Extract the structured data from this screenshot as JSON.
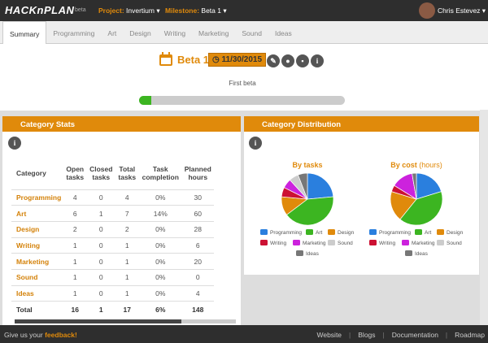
{
  "navbar": {
    "logo": "HACKnPLAN",
    "beta": "beta",
    "project_label": "Project:",
    "project": "Invertium",
    "milestone_label": "Milestone:",
    "milestone": "Beta 1",
    "user": "Chris Estevez"
  },
  "tabs": [
    "Summary",
    "Programming",
    "Art",
    "Design",
    "Writing",
    "Marketing",
    "Sound",
    "Ideas"
  ],
  "milestone": {
    "name": "Beta 1",
    "date": "11/30/2015",
    "description": "First beta",
    "progress": 6
  },
  "stats": {
    "title": "Category Stats",
    "columns": [
      "Category",
      "Open tasks",
      "Closed tasks",
      "Total tasks",
      "Task completion",
      "Planned hours"
    ],
    "rows": [
      [
        "Programming",
        4,
        0,
        4,
        "0%",
        30
      ],
      [
        "Art",
        6,
        1,
        7,
        "14%",
        60
      ],
      [
        "Design",
        2,
        0,
        2,
        "0%",
        28
      ],
      [
        "Writing",
        1,
        0,
        1,
        "0%",
        6
      ],
      [
        "Marketing",
        1,
        0,
        1,
        "0%",
        20
      ],
      [
        "Sound",
        1,
        0,
        1,
        "0%",
        0
      ],
      [
        "Ideas",
        1,
        0,
        1,
        "0%",
        4
      ]
    ],
    "total": [
      "Total",
      16,
      1,
      17,
      "6%",
      148
    ]
  },
  "distribution": {
    "title": "Category Distribution",
    "charts": [
      {
        "type": "pie",
        "title": "By tasks",
        "categories": [
          "Programming",
          "Art",
          "Design",
          "Writing",
          "Marketing",
          "Sound",
          "Ideas"
        ],
        "colors": [
          "#2a7fde",
          "#3cb521",
          "#e08a0b",
          "#cc1133",
          "#cc22dd",
          "#cccccc",
          "#777777"
        ],
        "values": [
          4,
          7,
          2,
          1,
          1,
          1,
          1
        ]
      },
      {
        "type": "pie",
        "title": "By cost",
        "title_suffix": "(hours)",
        "categories": [
          "Programming",
          "Art",
          "Design",
          "Writing",
          "Marketing",
          "Sound",
          "Ideas"
        ],
        "colors": [
          "#2a7fde",
          "#3cb521",
          "#e08a0b",
          "#cc1133",
          "#cc22dd",
          "#cccccc",
          "#777777"
        ],
        "values": [
          30,
          60,
          28,
          6,
          20,
          0,
          4
        ]
      }
    ]
  },
  "footer": {
    "feedback_prefix": "Give us your",
    "feedback_link": "feedback!",
    "links": [
      "Website",
      "Blogs",
      "Documentation",
      "Roadmap"
    ]
  }
}
